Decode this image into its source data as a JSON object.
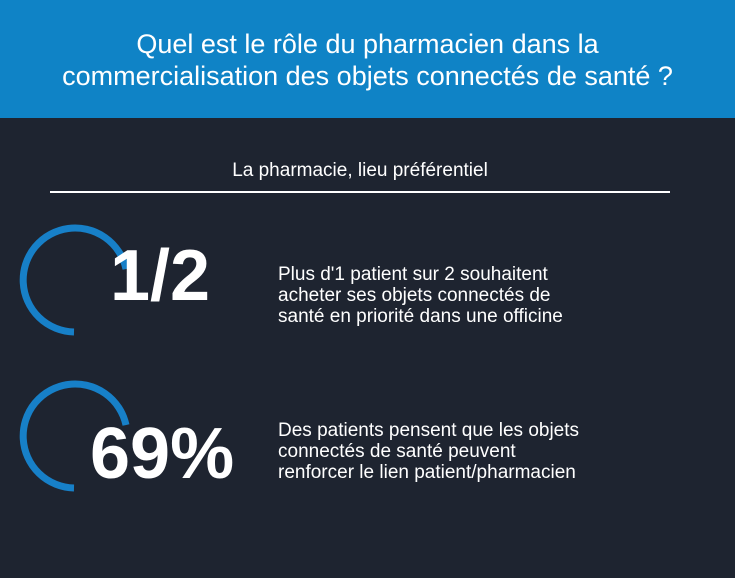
{
  "header": {
    "title_line1": "Quel est le rôle du pharmacien dans la",
    "title_line2": "commercialisation des objets connectés de santé ?"
  },
  "section": {
    "subtitle": "La pharmacie, lieu préférentiel"
  },
  "stats": [
    {
      "value": "1/2",
      "description_lines": [
        "Plus d'1 patient sur 2 souhaitent",
        "acheter ses objets connectés de",
        "santé en priorité dans une officine"
      ]
    },
    {
      "value": "69%",
      "description_lines": [
        "Des patients pensent que les objets",
        "connectés de santé peuvent",
        "renforcer le lien patient/pharmacien"
      ]
    }
  ],
  "colors": {
    "header_bg": "#0f83c6",
    "page_bg": "#1e2430",
    "ring": "#1780c8",
    "text": "#ffffff"
  }
}
